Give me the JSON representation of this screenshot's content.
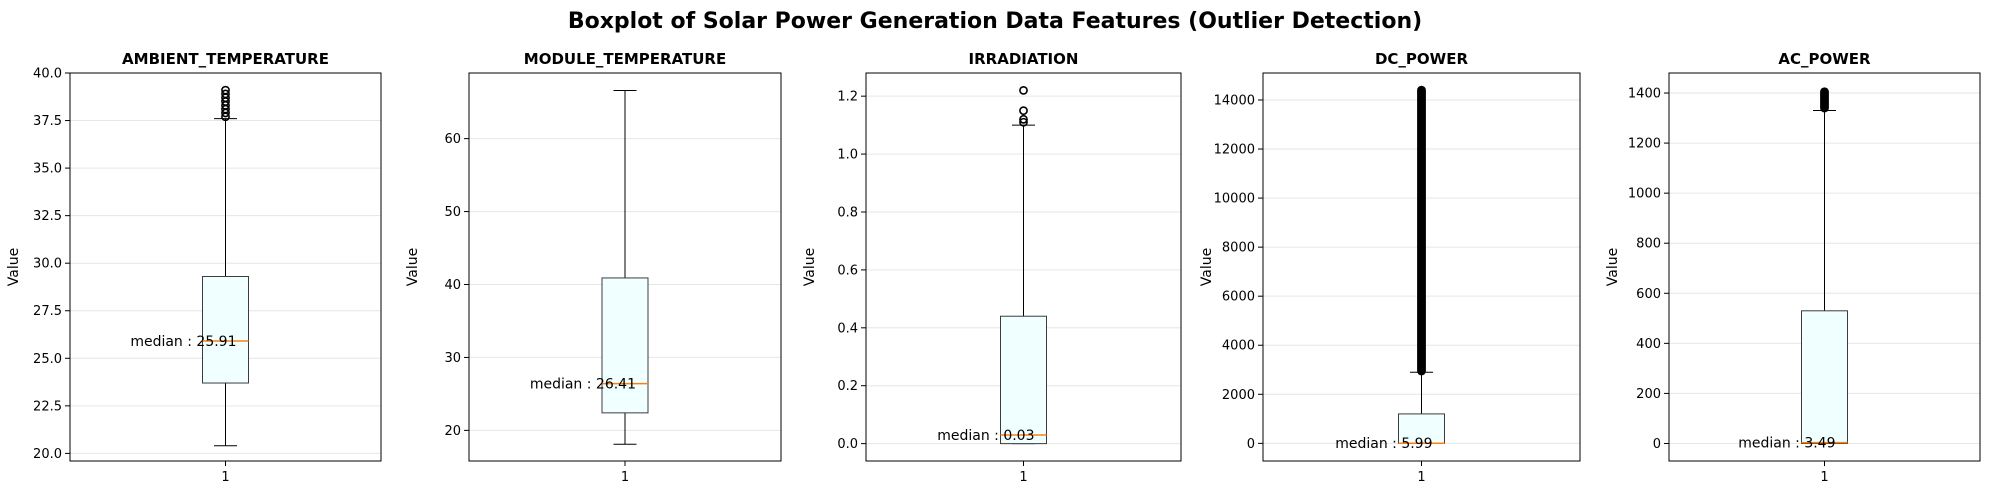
{
  "figure": {
    "title": "Boxplot of Solar Power Generation Data Features (Outlier Detection)"
  },
  "style": {
    "box_fill": "#f0ffff",
    "box_edge": "#3c3c3c",
    "median_color": "#ff7f0e",
    "grid_color": "#e6e6e6",
    "line_color": "#000000"
  },
  "chart_data": [
    {
      "type": "box",
      "title": "AMBIENT_TEMPERATURE",
      "ylabel": "Value",
      "categories": [
        "1"
      ],
      "ylim": [
        19.6,
        40.0
      ],
      "yticks": [
        20.0,
        22.5,
        25.0,
        27.5,
        30.0,
        32.5,
        35.0,
        37.5,
        40.0
      ],
      "ytick_labels": [
        "20.0",
        "22.5",
        "25.0",
        "27.5",
        "30.0",
        "32.5",
        "35.0",
        "37.5",
        "40.0"
      ],
      "grid": true,
      "box": {
        "whisker_low": 20.4,
        "q1": 23.7,
        "median": 25.91,
        "q3": 29.3,
        "whisker_high": 37.6
      },
      "outliers": [
        37.7,
        37.9,
        38.1,
        38.3,
        38.5,
        38.7,
        38.9,
        39.1
      ],
      "annotation": "median : 25.91"
    },
    {
      "type": "box",
      "title": "MODULE_TEMPERATURE",
      "ylabel": "Value",
      "categories": [
        "1"
      ],
      "ylim": [
        15.8,
        69.0
      ],
      "yticks": [
        20,
        30,
        40,
        50,
        60
      ],
      "ytick_labels": [
        "20",
        "30",
        "40",
        "50",
        "60"
      ],
      "grid": true,
      "box": {
        "whisker_low": 18.1,
        "q1": 22.4,
        "median": 26.41,
        "q3": 40.9,
        "whisker_high": 66.6
      },
      "outliers": [],
      "annotation": "median : 26.41"
    },
    {
      "type": "box",
      "title": "IRRADIATION",
      "ylabel": "Value",
      "categories": [
        "1"
      ],
      "ylim": [
        -0.06,
        1.28
      ],
      "yticks": [
        0.0,
        0.2,
        0.4,
        0.6,
        0.8,
        1.0,
        1.2
      ],
      "ytick_labels": [
        "0.0",
        "0.2",
        "0.4",
        "0.6",
        "0.8",
        "1.0",
        "1.2"
      ],
      "grid": true,
      "box": {
        "whisker_low": 0.0,
        "q1": 0.0,
        "median": 0.03,
        "q3": 0.44,
        "whisker_high": 1.1
      },
      "outliers": [
        1.11,
        1.12,
        1.15,
        1.22
      ],
      "annotation": "median : 0.03"
    },
    {
      "type": "box",
      "title": "DC_POWER",
      "ylabel": "Value",
      "categories": [
        "1"
      ],
      "ylim": [
        -720,
        15100
      ],
      "yticks": [
        0,
        2000,
        4000,
        6000,
        8000,
        10000,
        12000,
        14000
      ],
      "ytick_labels": [
        "0",
        "2000",
        "4000",
        "6000",
        "8000",
        "10000",
        "12000",
        "14000"
      ],
      "grid": true,
      "box": {
        "whisker_low": 0,
        "q1": 0,
        "median": 5.99,
        "q3": 1200,
        "whisker_high": 2900
      },
      "outlier_range": [
        2950,
        14400
      ],
      "annotation": "median : 5.99"
    },
    {
      "type": "box",
      "title": "AC_POWER",
      "ylabel": "Value",
      "categories": [
        "1"
      ],
      "ylim": [
        -70,
        1480
      ],
      "yticks": [
        0,
        200,
        400,
        600,
        800,
        1000,
        1200,
        1400
      ],
      "ytick_labels": [
        "0",
        "200",
        "400",
        "600",
        "800",
        "1000",
        "1200",
        "1400"
      ],
      "grid": true,
      "box": {
        "whisker_low": 0,
        "q1": 0,
        "median": 3.49,
        "q3": 530,
        "whisker_high": 1330
      },
      "outlier_range": [
        1340,
        1405
      ],
      "annotation": "median : 3.49"
    }
  ]
}
